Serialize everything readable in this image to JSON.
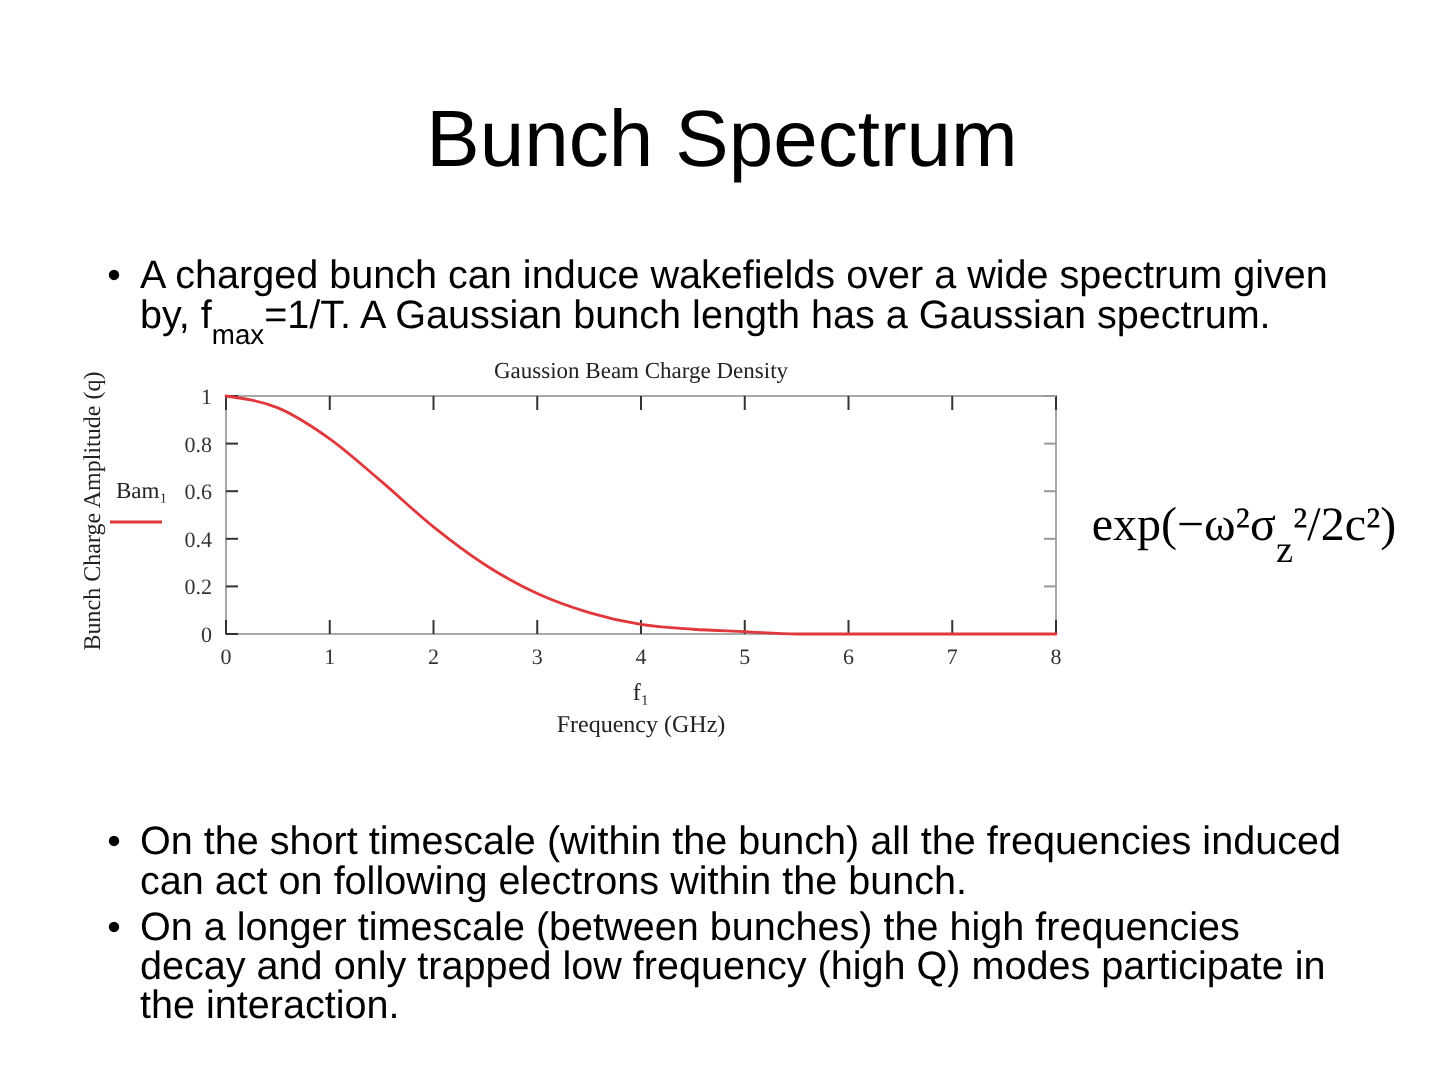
{
  "chart_data": {
    "type": "line",
    "title": "Bunch Spectrum",
    "subtitle": "Gaussion Beam Charge Density",
    "xlabel": "f₁\nFrequency  (GHz)",
    "ylabel": "Bunch Charge Amplitude (q)",
    "x": [
      0,
      0.5,
      1,
      1.5,
      2,
      2.5,
      3,
      3.5,
      4,
      4.5,
      5,
      5.5,
      6,
      6.5,
      7,
      7.5,
      8
    ],
    "series": [
      {
        "name": "Bam₁",
        "color": "#e0383c",
        "values": [
          1,
          0.95,
          0.82,
          0.64,
          0.45,
          0.29,
          0.17,
          0.09,
          0.04,
          0.02,
          0.01,
          0,
          0,
          0,
          0,
          0,
          0
        ]
      }
    ],
    "xlim": [
      0,
      8
    ],
    "ylim": [
      0,
      1
    ],
    "xticks": [
      0,
      1,
      2,
      3,
      4,
      5,
      6,
      7,
      8
    ],
    "yticks": [
      0,
      0.2,
      0.4,
      0.6,
      0.8,
      1
    ],
    "grid": false,
    "legend": "left",
    "line_style": "solid",
    "annotations": [
      "A charged bunch can induce wakefields over a wide spectrum given by, f$_{max}$=1/T. A Gaussian bunch length has a Gaussian spectrum.",
      "exp(−ω²σ$_{z}$²/2c²)",
      "On the short timescale (within the bunch) all the frequencies induced can act on following electrons within the bunch.",
      "On a longer timescale (between bunches) the high frequencies decay and only trapped low frequency (high Q) modes participate in the interaction."
    ]
  }
}
